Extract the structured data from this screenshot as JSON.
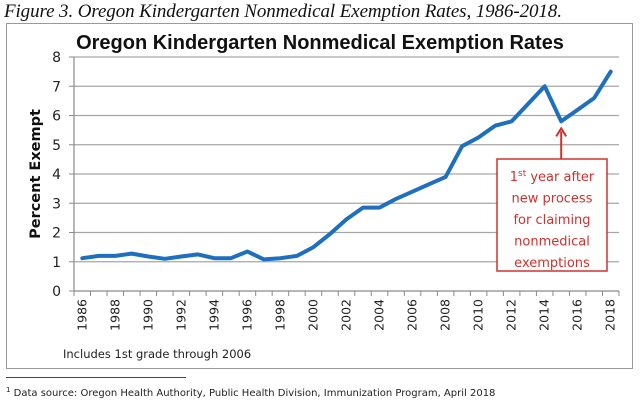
{
  "figure_caption": "Figure 3. Oregon Kindergarten Nonmedical Exemption Rates, 1986-2018.",
  "note": "Includes 1st grade through 2006",
  "footnote": {
    "marker": "1",
    "text": "Data source: Oregon Health Authority, Public Health Division, Immunization Program, April 2018"
  },
  "annotation": {
    "sup": "st",
    "lines": [
      "1",
      "year after",
      "new process",
      "for claiming",
      "nonmedical",
      "exemptions"
    ],
    "target_year": "2015",
    "color": "#d0312d"
  },
  "chart_data": {
    "type": "line",
    "title": "Oregon Kindergarten Nonmedical Exemption Rates",
    "xlabel": "",
    "ylabel": "Percent Exempt",
    "ylim": [
      0,
      8
    ],
    "yticks": [
      0,
      1,
      2,
      3,
      4,
      5,
      6,
      7,
      8
    ],
    "grid": true,
    "legend": "none",
    "line_color": "#1f6fbf",
    "x": [
      "1986",
      "1987",
      "1988",
      "1989",
      "1990",
      "1991",
      "1992",
      "1993",
      "1994",
      "1995",
      "1996",
      "1997",
      "1998",
      "1999",
      "2000",
      "2001",
      "2002",
      "2003",
      "2004",
      "2005",
      "2006",
      "2007",
      "2008",
      "2009",
      "2010",
      "2011",
      "2012",
      "2013",
      "2014",
      "2015",
      "2016",
      "2017",
      "2018"
    ],
    "xtick_labels": [
      "1986",
      "1988",
      "1990",
      "1992",
      "1994",
      "1996",
      "1998",
      "2000",
      "2002",
      "2004",
      "2006",
      "2008",
      "2010",
      "2012",
      "2014",
      "2016",
      "2018"
    ],
    "series": [
      {
        "name": "Percent Exempt",
        "values": [
          1.12,
          1.2,
          1.2,
          1.28,
          1.18,
          1.1,
          1.18,
          1.25,
          1.12,
          1.12,
          1.35,
          1.08,
          1.12,
          1.2,
          1.5,
          1.95,
          2.45,
          2.85,
          2.85,
          3.15,
          3.4,
          3.65,
          3.9,
          4.95,
          5.25,
          5.65,
          5.8,
          6.4,
          7.0,
          5.8,
          6.2,
          6.6,
          7.5
        ]
      }
    ]
  }
}
